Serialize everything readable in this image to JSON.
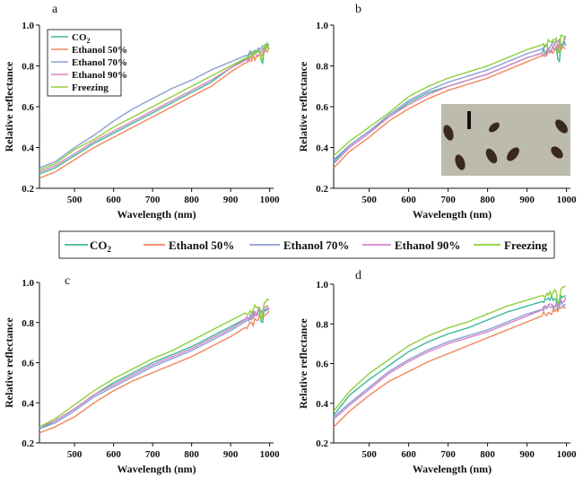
{
  "colors": {
    "co2": "#3cb996",
    "ethanol50": "#f0875a",
    "ethanol70": "#8a9fd4",
    "ethanol90": "#d884c8",
    "freezing": "#8fcf3c"
  },
  "legend": {
    "entries": [
      {
        "key": "co2",
        "base": "CO",
        "sub": "2"
      },
      {
        "key": "ethanol50",
        "label": "Ethanol 50%"
      },
      {
        "key": "ethanol70",
        "label": "Ethanol 70%"
      },
      {
        "key": "ethanol90",
        "label": "Ethanol 90%"
      },
      {
        "key": "freezing",
        "label": "Freezing"
      }
    ]
  },
  "inset": {
    "description": "micrograph with scale bar",
    "icon": "microscope-photo-icon"
  },
  "chart_data": [
    {
      "type": "line",
      "panel_label": "a",
      "legend": "top-left",
      "xlabel": "Wavelength (nm)",
      "ylabel": "Relative reflectance",
      "xlim": [
        410,
        1010
      ],
      "ylim": [
        0.2,
        1.0
      ],
      "xticks": [
        500,
        600,
        700,
        800,
        900,
        1000
      ],
      "yticks": [
        0.2,
        0.4,
        0.6,
        0.8,
        1.0
      ],
      "x": [
        410,
        450,
        500,
        550,
        600,
        650,
        700,
        750,
        800,
        850,
        900,
        950,
        1000
      ],
      "series": [
        {
          "key": "co2",
          "name": "CO2",
          "values": [
            0.27,
            0.3,
            0.36,
            0.42,
            0.47,
            0.52,
            0.57,
            0.62,
            0.67,
            0.72,
            0.79,
            0.85,
            0.9
          ]
        },
        {
          "key": "ethanol50",
          "name": "Ethanol 50%",
          "values": [
            0.25,
            0.28,
            0.34,
            0.4,
            0.45,
            0.5,
            0.55,
            0.6,
            0.65,
            0.7,
            0.77,
            0.83,
            0.88
          ]
        },
        {
          "key": "ethanol70",
          "name": "Ethanol 70%",
          "values": [
            0.3,
            0.33,
            0.4,
            0.46,
            0.53,
            0.59,
            0.64,
            0.69,
            0.73,
            0.78,
            0.82,
            0.86,
            0.9
          ]
        },
        {
          "key": "ethanol90",
          "name": "Ethanol 90%",
          "values": [
            0.28,
            0.31,
            0.37,
            0.43,
            0.48,
            0.53,
            0.58,
            0.63,
            0.68,
            0.73,
            0.79,
            0.84,
            0.89
          ]
        },
        {
          "key": "freezing",
          "name": "Freezing",
          "values": [
            0.29,
            0.32,
            0.39,
            0.44,
            0.5,
            0.55,
            0.6,
            0.65,
            0.7,
            0.75,
            0.8,
            0.85,
            0.9
          ]
        }
      ]
    },
    {
      "type": "line",
      "panel_label": "b",
      "legend": "none",
      "xlabel": "Wavelength (nm)",
      "ylabel": "Relative reflectance",
      "xlim": [
        410,
        1010
      ],
      "ylim": [
        0.2,
        1.0
      ],
      "xticks": [
        500,
        600,
        700,
        800,
        900,
        1000
      ],
      "yticks": [
        0.2,
        0.4,
        0.6,
        0.8,
        1.0
      ],
      "x": [
        410,
        450,
        500,
        550,
        600,
        650,
        700,
        750,
        800,
        850,
        900,
        950,
        1000
      ],
      "series": [
        {
          "key": "co2",
          "name": "CO2",
          "values": [
            0.33,
            0.41,
            0.48,
            0.55,
            0.62,
            0.67,
            0.7,
            0.73,
            0.76,
            0.8,
            0.84,
            0.87,
            0.91
          ]
        },
        {
          "key": "ethanol50",
          "name": "Ethanol 50%",
          "values": [
            0.3,
            0.38,
            0.45,
            0.53,
            0.59,
            0.64,
            0.68,
            0.71,
            0.74,
            0.78,
            0.82,
            0.86,
            0.9
          ]
        },
        {
          "key": "ethanol70",
          "name": "Ethanol 70%",
          "values": [
            0.34,
            0.41,
            0.48,
            0.56,
            0.63,
            0.68,
            0.72,
            0.75,
            0.78,
            0.82,
            0.86,
            0.89,
            0.93
          ]
        },
        {
          "key": "ethanol90",
          "name": "Ethanol 90%",
          "values": [
            0.32,
            0.4,
            0.47,
            0.55,
            0.61,
            0.66,
            0.7,
            0.73,
            0.76,
            0.8,
            0.84,
            0.87,
            0.92
          ]
        },
        {
          "key": "freezing",
          "name": "Freezing",
          "values": [
            0.36,
            0.43,
            0.5,
            0.57,
            0.65,
            0.7,
            0.74,
            0.77,
            0.8,
            0.84,
            0.88,
            0.91,
            0.95
          ]
        }
      ]
    },
    {
      "type": "line",
      "panel_label": "c",
      "legend": "none",
      "xlabel": "Wavelength (nm)",
      "ylabel": "Relative reflectance",
      "xlim": [
        410,
        1010
      ],
      "ylim": [
        0.2,
        1.0
      ],
      "xticks": [
        500,
        600,
        700,
        800,
        900,
        1000
      ],
      "yticks": [
        0.2,
        0.4,
        0.6,
        0.8,
        1.0
      ],
      "x": [
        410,
        450,
        500,
        550,
        600,
        650,
        700,
        750,
        800,
        850,
        900,
        950,
        1000
      ],
      "series": [
        {
          "key": "co2",
          "name": "CO2",
          "values": [
            0.27,
            0.31,
            0.37,
            0.44,
            0.5,
            0.55,
            0.6,
            0.64,
            0.68,
            0.73,
            0.78,
            0.83,
            0.88
          ]
        },
        {
          "key": "ethanol50",
          "name": "Ethanol 50%",
          "values": [
            0.25,
            0.28,
            0.33,
            0.4,
            0.46,
            0.51,
            0.55,
            0.59,
            0.63,
            0.68,
            0.73,
            0.79,
            0.85
          ]
        },
        {
          "key": "ethanol70",
          "name": "Ethanol 70%",
          "values": [
            0.27,
            0.3,
            0.36,
            0.43,
            0.48,
            0.53,
            0.58,
            0.62,
            0.66,
            0.71,
            0.76,
            0.82,
            0.87
          ]
        },
        {
          "key": "ethanol90",
          "name": "Ethanol 90%",
          "values": [
            0.28,
            0.31,
            0.37,
            0.44,
            0.49,
            0.54,
            0.59,
            0.63,
            0.67,
            0.72,
            0.77,
            0.83,
            0.88
          ]
        },
        {
          "key": "freezing",
          "name": "Freezing",
          "values": [
            0.28,
            0.32,
            0.39,
            0.46,
            0.52,
            0.57,
            0.62,
            0.66,
            0.71,
            0.76,
            0.81,
            0.86,
            0.91
          ]
        }
      ]
    },
    {
      "type": "line",
      "panel_label": "d",
      "legend": "none",
      "xlabel": "Wavelength (nm)",
      "ylabel": "Relative reflectance",
      "xlim": [
        410,
        1010
      ],
      "ylim": [
        0.2,
        1.0
      ],
      "xticks": [
        500,
        600,
        700,
        800,
        900,
        1000
      ],
      "yticks": [
        0.2,
        0.4,
        0.6,
        0.8,
        1.0
      ],
      "x": [
        410,
        450,
        500,
        550,
        600,
        650,
        700,
        750,
        800,
        850,
        900,
        950,
        1000
      ],
      "series": [
        {
          "key": "co2",
          "name": "CO2",
          "values": [
            0.34,
            0.44,
            0.52,
            0.59,
            0.66,
            0.71,
            0.75,
            0.78,
            0.82,
            0.86,
            0.89,
            0.92,
            0.95
          ]
        },
        {
          "key": "ethanol50",
          "name": "Ethanol 50%",
          "values": [
            0.28,
            0.36,
            0.44,
            0.51,
            0.56,
            0.61,
            0.65,
            0.69,
            0.73,
            0.77,
            0.81,
            0.85,
            0.88
          ]
        },
        {
          "key": "ethanol70",
          "name": "Ethanol 70%",
          "values": [
            0.33,
            0.4,
            0.48,
            0.56,
            0.62,
            0.67,
            0.71,
            0.74,
            0.77,
            0.81,
            0.85,
            0.88,
            0.91
          ]
        },
        {
          "key": "ethanol90",
          "name": "Ethanol 90%",
          "values": [
            0.32,
            0.39,
            0.47,
            0.55,
            0.61,
            0.66,
            0.7,
            0.73,
            0.76,
            0.8,
            0.84,
            0.88,
            0.92
          ]
        },
        {
          "key": "freezing",
          "name": "Freezing",
          "values": [
            0.36,
            0.46,
            0.55,
            0.62,
            0.69,
            0.74,
            0.78,
            0.81,
            0.85,
            0.89,
            0.92,
            0.95,
            0.98
          ]
        }
      ]
    }
  ]
}
